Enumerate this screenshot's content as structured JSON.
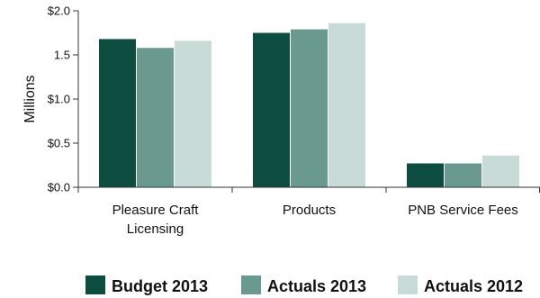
{
  "chart_data": {
    "type": "bar",
    "title": "",
    "xlabel": "",
    "ylabel": "Millions",
    "ylim": [
      0,
      2.0
    ],
    "y_ticks": [
      {
        "value": 0.0,
        "label": "$0.0"
      },
      {
        "value": 0.5,
        "label": "$0.5"
      },
      {
        "value": 1.0,
        "label": "$1.0"
      },
      {
        "value": 1.5,
        "label": "1.5"
      },
      {
        "value": 2.0,
        "label": "$2.0"
      }
    ],
    "categories": [
      [
        "Pleasure Craft",
        "Licensing"
      ],
      [
        "Products"
      ],
      [
        "PNB Service Fees"
      ]
    ],
    "series": [
      {
        "name": "Budget 2013",
        "color": "#0d4d40",
        "values": [
          1.68,
          1.75,
          0.27
        ]
      },
      {
        "name": "Actuals 2013",
        "color": "#6a9a8f",
        "values": [
          1.58,
          1.79,
          0.27
        ]
      },
      {
        "name": "Actuals 2012",
        "color": "#c9dbd6",
        "values": [
          1.66,
          1.86,
          0.36
        ]
      }
    ],
    "grid": false,
    "legend": "bottom"
  }
}
